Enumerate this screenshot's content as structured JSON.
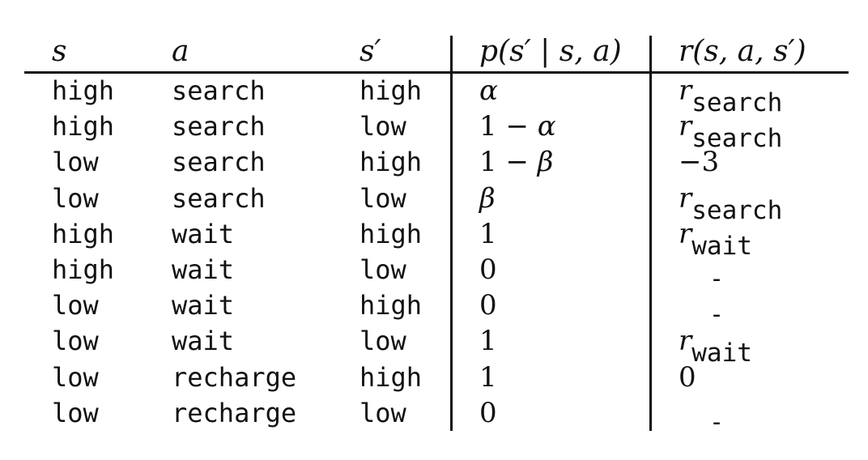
{
  "table": {
    "headers": {
      "s": "s",
      "a": "a",
      "s_prime": "s′",
      "p": "p(s′ | s, a)",
      "r": "r(s, a, s′)"
    },
    "rows": [
      {
        "s": "high",
        "a": "search",
        "s_prime": "high",
        "p": "α",
        "r_kind": "sub",
        "r_sym": "r",
        "r_sub": "search",
        "r_text": ""
      },
      {
        "s": "high",
        "a": "search",
        "s_prime": "low",
        "p": "1 − α",
        "r_kind": "sub",
        "r_sym": "r",
        "r_sub": "search",
        "r_text": ""
      },
      {
        "s": "low",
        "a": "search",
        "s_prime": "high",
        "p": "1 − β",
        "r_kind": "plain",
        "r_sym": "",
        "r_sub": "",
        "r_text": "−3"
      },
      {
        "s": "low",
        "a": "search",
        "s_prime": "low",
        "p": "β",
        "r_kind": "sub",
        "r_sym": "r",
        "r_sub": "search",
        "r_text": ""
      },
      {
        "s": "high",
        "a": "wait",
        "s_prime": "high",
        "p": "1",
        "r_kind": "sub",
        "r_sym": "r",
        "r_sub": "wait",
        "r_text": ""
      },
      {
        "s": "high",
        "a": "wait",
        "s_prime": "low",
        "p": "0",
        "r_kind": "dash",
        "r_sym": "",
        "r_sub": "",
        "r_text": "-"
      },
      {
        "s": "low",
        "a": "wait",
        "s_prime": "high",
        "p": "0",
        "r_kind": "dash",
        "r_sym": "",
        "r_sub": "",
        "r_text": "-"
      },
      {
        "s": "low",
        "a": "wait",
        "s_prime": "low",
        "p": "1",
        "r_kind": "sub",
        "r_sym": "r",
        "r_sub": "wait",
        "r_text": ""
      },
      {
        "s": "low",
        "a": "recharge",
        "s_prime": "high",
        "p": "1",
        "r_kind": "plain",
        "r_sym": "",
        "r_sub": "",
        "r_text": "0"
      },
      {
        "s": "low",
        "a": "recharge",
        "s_prime": "low",
        "p": "0",
        "r_kind": "dash",
        "r_sym": "",
        "r_sub": "",
        "r_text": "-"
      }
    ]
  }
}
